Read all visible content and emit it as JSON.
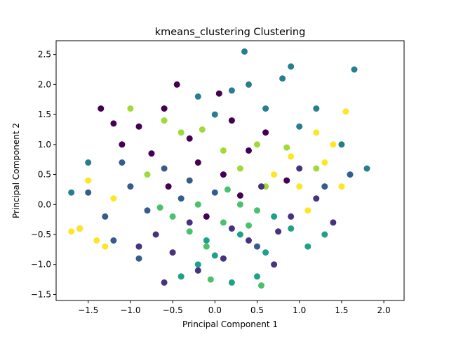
{
  "chart_data": {
    "type": "scatter",
    "title": "kmeans_clustering Clustering",
    "xlabel": "Principal Component 1",
    "ylabel": "Principal Component 2",
    "xlim": [
      -1.88,
      2.24
    ],
    "ylim": [
      -1.6,
      2.73
    ],
    "xticks": [
      -1.5,
      -1.0,
      -0.5,
      0.0,
      0.5,
      1.0,
      1.5,
      2.0
    ],
    "xtick_labels": [
      "−1.5",
      "−1.0",
      "−0.5",
      "0.0",
      "0.5",
      "1.0",
      "1.5",
      "2.0"
    ],
    "yticks": [
      -1.5,
      -1.0,
      -0.5,
      0.0,
      0.5,
      1.0,
      1.5,
      2.0,
      2.5
    ],
    "ytick_labels": [
      "−1.5",
      "−1.0",
      "−0.5",
      "0.0",
      "0.5",
      "1.0",
      "1.5",
      "2.0",
      "2.5"
    ],
    "grid": false,
    "legend": "none",
    "colormap": "viridis",
    "cluster_colors": [
      "#440154",
      "#46327e",
      "#365c8d",
      "#277f8e",
      "#1fa187",
      "#4ac16d",
      "#a0da39",
      "#fde725"
    ],
    "series": [
      {
        "cluster": 0,
        "values": [
          [
            -0.9,
            1.3
          ],
          [
            -0.6,
            1.6
          ],
          [
            -0.3,
            1.1
          ],
          [
            0.2,
            1.4
          ],
          [
            0.4,
            0.9
          ],
          [
            -1.1,
            1.0
          ],
          [
            0.1,
            0.5
          ],
          [
            -0.2,
            0.7
          ],
          [
            0.6,
            1.2
          ],
          [
            -0.75,
            0.85
          ],
          [
            0.05,
            1.85
          ],
          [
            -0.45,
            2.0
          ],
          [
            -1.35,
            1.6
          ],
          [
            0.3,
            0.15
          ],
          [
            -0.1,
            -0.2
          ],
          [
            0.85,
            0.4
          ],
          [
            -0.55,
            0.3
          ],
          [
            -1.2,
            1.35
          ]
        ]
      },
      {
        "cluster": 1,
        "values": [
          [
            -0.5,
            -0.8
          ],
          [
            -0.2,
            -1.1
          ],
          [
            -0.7,
            -0.5
          ],
          [
            0.1,
            -0.9
          ],
          [
            0.4,
            -0.6
          ],
          [
            -0.3,
            -0.3
          ],
          [
            0.7,
            -1.0
          ],
          [
            -0.9,
            -0.7
          ],
          [
            0.9,
            -0.2
          ],
          [
            1.2,
            0.1
          ],
          [
            0.55,
            0.3
          ],
          [
            1.4,
            -0.3
          ],
          [
            -0.6,
            -1.3
          ],
          [
            0.2,
            -0.4
          ],
          [
            1.0,
            0.6
          ],
          [
            0.75,
            -0.45
          ]
        ]
      },
      {
        "cluster": 2,
        "values": [
          [
            -1.3,
            -0.2
          ],
          [
            -1.0,
            0.3
          ],
          [
            -0.8,
            -0.1
          ],
          [
            -1.5,
            0.2
          ],
          [
            -0.6,
            0.6
          ],
          [
            -1.2,
            -0.6
          ],
          [
            -0.4,
            0.1
          ],
          [
            -1.6,
            -0.4
          ],
          [
            -0.9,
            -0.9
          ],
          [
            -0.3,
            0.4
          ],
          [
            0.0,
            0.2
          ],
          [
            -1.1,
            0.7
          ],
          [
            1.3,
            0.3
          ],
          [
            1.6,
            0.5
          ],
          [
            0.5,
            -0.7
          ]
        ]
      },
      {
        "cluster": 3,
        "values": [
          [
            0.2,
            1.9
          ],
          [
            0.6,
            1.6
          ],
          [
            1.0,
            1.3
          ],
          [
            0.4,
            2.0
          ],
          [
            -0.2,
            1.8
          ],
          [
            0.8,
            2.1
          ],
          [
            1.2,
            1.6
          ],
          [
            0.0,
            1.5
          ],
          [
            -1.5,
            0.7
          ],
          [
            -1.7,
            0.2
          ],
          [
            1.5,
            1.0
          ],
          [
            1.8,
            0.6
          ],
          [
            0.9,
            2.3
          ],
          [
            0.35,
            2.55
          ],
          [
            1.65,
            2.25
          ]
        ]
      },
      {
        "cluster": 4,
        "values": [
          [
            0.3,
            -0.5
          ],
          [
            0.6,
            -0.8
          ],
          [
            -0.1,
            -0.6
          ],
          [
            0.9,
            -0.4
          ],
          [
            0.5,
            -1.2
          ],
          [
            -0.2,
            -1.0
          ],
          [
            1.1,
            -0.7
          ],
          [
            0.2,
            -1.3
          ],
          [
            0.7,
            -0.2
          ],
          [
            1.3,
            -0.5
          ],
          [
            -0.4,
            -1.2
          ],
          [
            0.0,
            -0.85
          ]
        ]
      },
      {
        "cluster": 5,
        "values": [
          [
            -0.2,
            0.0
          ],
          [
            0.1,
            -0.3
          ],
          [
            -0.5,
            -0.2
          ],
          [
            0.3,
            0.0
          ],
          [
            -0.1,
            -0.7
          ],
          [
            0.5,
            -0.1
          ],
          [
            -0.3,
            -0.45
          ],
          [
            0.15,
            0.25
          ],
          [
            0.55,
            -1.35
          ],
          [
            -0.05,
            -1.25
          ],
          [
            0.4,
            -0.35
          ],
          [
            -0.65,
            -0.05
          ]
        ]
      },
      {
        "cluster": 6,
        "values": [
          [
            -0.4,
            1.2
          ],
          [
            -0.2,
            0.7
          ],
          [
            0.5,
            1.0
          ],
          [
            -0.8,
            0.5
          ],
          [
            0.1,
            0.9
          ],
          [
            -1.0,
            1.6
          ],
          [
            0.3,
            0.6
          ],
          [
            -0.6,
            1.4
          ],
          [
            1.2,
            0.6
          ],
          [
            0.6,
            0.3
          ],
          [
            -0.15,
            1.25
          ],
          [
            0.85,
            0.95
          ]
        ]
      },
      {
        "cluster": 7,
        "values": [
          [
            1.0,
            0.3
          ],
          [
            1.3,
            0.7
          ],
          [
            0.9,
            0.8
          ],
          [
            1.5,
            0.3
          ],
          [
            1.1,
            -0.1
          ],
          [
            -1.4,
            -0.6
          ],
          [
            -1.2,
            0.1
          ],
          [
            -1.6,
            -0.4
          ],
          [
            -1.3,
            -0.7
          ],
          [
            1.4,
            1.0
          ],
          [
            0.7,
            0.5
          ],
          [
            -1.5,
            0.4
          ],
          [
            1.2,
            1.2
          ],
          [
            1.55,
            1.55
          ],
          [
            -1.7,
            -0.45
          ]
        ]
      }
    ]
  }
}
